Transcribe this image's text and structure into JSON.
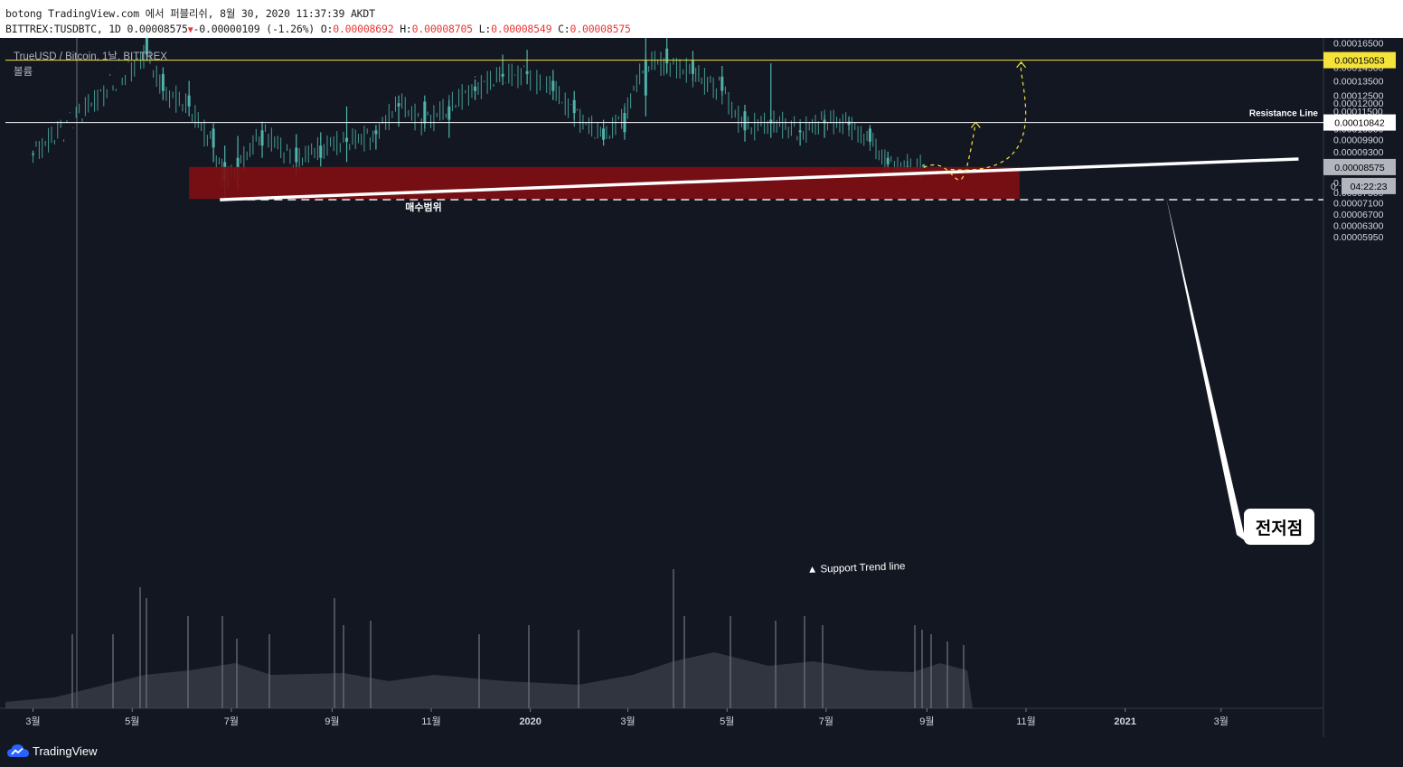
{
  "header": {
    "line1": "botong TradingView.com 에서 퍼블리쉬, 8월 30, 2020 11:37:39 AKDT",
    "symbol": "BITTREX:TUSDBTC, 1D 0.00008575",
    "change": "-0.00000109 (-1.26%)",
    "o_label": "O:",
    "o_value": "0.00008692",
    "h_label": "H:",
    "h_value": "0.00008705",
    "l_label": "L:",
    "l_value": "0.00008549",
    "c_label": "C:",
    "c_value": "0.00008575"
  },
  "legend": {
    "title": "TrueUSD / Bitcoin, 1날, BITTREX",
    "volume_label": "볼륨"
  },
  "footer": {
    "brand": "TradingView"
  },
  "colors": {
    "background": "#131722",
    "candle": "#4fb3a9",
    "resistance_yellow": "#f5e33b",
    "zone": "#7f0f14"
  },
  "chart_data": {
    "type": "candlestick",
    "symbol": "BITTREX:TUSDBTC",
    "timeframe": "1D",
    "y_scale": "log",
    "ylim": [
      5.7e-06,
      0.000166
    ],
    "x_ticks": [
      "3월",
      "5월",
      "7월",
      "9월",
      "11월",
      "2020",
      "3월",
      "5월",
      "7월",
      "9월",
      "11월",
      "2021",
      "3월"
    ],
    "y_ticks": [
      "0.00016500",
      "0.00015500",
      "0.00014500",
      "0.00013500",
      "0.00012500",
      "0.00012000",
      "0.00011500",
      "0.00011000",
      "0.00010500",
      "0.00009900",
      "0.00009300",
      "0.00008700",
      "0.00007900",
      "0.00007500",
      "0.00007100",
      "0.00006700",
      "0.00006300",
      "0.00005950"
    ],
    "price_badges": [
      {
        "value": "0.00015053",
        "color": "#f5e33b",
        "text_color": "#000000"
      },
      {
        "value": "0.00010842",
        "color": "#ffffff",
        "text_color": "#000000"
      },
      {
        "value": "0.00008575",
        "color": "#b2b5be",
        "text_color": "#000000"
      },
      {
        "value": "04:22:23",
        "color": "#b2b5be",
        "text_color": "#000000"
      }
    ],
    "countdown_row_prefix": "0.",
    "horizontal_lines": [
      {
        "value": 0.00015053,
        "color": "#f5e33b"
      },
      {
        "value": 0.00010842,
        "color": "#ffffff",
        "label": "Resistance Line"
      }
    ],
    "support_trendline": {
      "label": "▲ Support Trend line",
      "from": [
        "2019-06-24",
        7.22e-05
      ],
      "to": [
        "2021-04-01",
        8.8e-05
      ]
    },
    "buy_zone": {
      "label": "매수범위",
      "from": "2019-06-05",
      "to": "2020-10-28",
      "top": 8.58e-05,
      "bottom": 7.25e-05
    },
    "prior_low": {
      "label": "전저점",
      "value": 7.22e-05
    },
    "projections": [
      {
        "from": [
          "2020-08-30",
          8.55e-05
        ],
        "to": [
          "2020-10-01",
          0.0001085
        ]
      },
      {
        "from": [
          "2020-08-30",
          8.55e-05
        ],
        "to": [
          "2020-10-29",
          0.000149
        ]
      }
    ],
    "candles": [
      [
        "2019-03-01",
        9.2e-05,
        9.35e-05,
        9.05e-05,
        9.18e-05
      ],
      [
        "2019-05-10",
        0.00017,
        0.000172,
        0.00015,
        0.000155
      ],
      [
        "2019-05-20",
        0.00014,
        0.000145,
        0.000122,
        0.000128
      ],
      [
        "2019-06-05",
        0.000125,
        0.000135,
        0.000112,
        0.000118
      ],
      [
        "2019-06-20",
        0.000105,
        0.000108,
        8.8e-05,
        9.5e-05
      ],
      [
        "2019-06-27",
        8.8e-05,
        9.6e-05,
        7.22e-05,
        8e-05
      ],
      [
        "2019-07-05",
        9e-05,
        0.000101,
        7.6e-05,
        8.5e-05
      ],
      [
        "2019-07-20",
        9.6e-05,
        0.000108,
        9e-05,
        0.000104
      ],
      [
        "2019-08-10",
        9.5e-05,
        0.000102,
        8.2e-05,
        8.8e-05
      ],
      [
        "2019-08-25",
        9e-05,
        0.000103,
        8.6e-05,
        9.6e-05
      ],
      [
        "2019-09-10",
        0.0001,
        0.000118,
        8.8e-05,
        9.8e-05
      ],
      [
        "2019-09-28",
        0.000104,
        0.000107,
        9.4e-05,
        0.000102
      ],
      [
        "2019-10-12",
        0.000118,
        0.000125,
        0.000106,
        0.00012
      ],
      [
        "2019-10-28",
        0.000121,
        0.000125,
        0.000105,
        0.000108
      ],
      [
        "2019-11-12",
        0.00011,
        0.000122,
        0.0001,
        0.000118
      ],
      [
        "2019-11-28",
        0.000128,
        0.000136,
        0.000122,
        0.000131
      ],
      [
        "2019-12-15",
        0.00014,
        0.000155,
        0.000132,
        0.000138
      ],
      [
        "2019-12-30",
        0.000142,
        0.000159,
        0.000133,
        0.00014
      ],
      [
        "2020-01-15",
        0.000135,
        0.000143,
        0.000122,
        0.000128
      ],
      [
        "2020-01-28",
        0.000122,
        0.000128,
        0.00011,
        0.000114
      ],
      [
        "2020-02-15",
        0.000105,
        0.00011,
        9.6e-05,
        9.9e-05
      ],
      [
        "2020-02-28",
        0.000103,
        0.000118,
        9.9e-05,
        0.000114
      ],
      [
        "2020-03-12",
        0.000125,
        0.000172,
        0.000112,
        0.00015
      ],
      [
        "2020-03-25",
        0.00016,
        0.000172,
        0.000141,
        0.000148
      ],
      [
        "2020-04-10",
        0.00015,
        0.000158,
        0.000135,
        0.00014
      ],
      [
        "2020-04-28",
        0.000138,
        0.000146,
        0.000125,
        0.000128
      ],
      [
        "2020-05-12",
        0.000115,
        0.000119,
        9.8e-05,
        0.000104
      ],
      [
        "2020-05-28",
        0.000108,
        0.000148,
        0.0001,
        0.00011
      ],
      [
        "2020-06-15",
        0.000104,
        0.000108,
        9.6e-05,
        0.000103
      ],
      [
        "2020-06-30",
        0.000108,
        0.000113,
        0.0001,
        0.00011
      ],
      [
        "2020-07-15",
        0.000109,
        0.000112,
        0.000104,
        0.000107
      ],
      [
        "2020-07-28",
        0.000105,
        0.000107,
        9.6e-05,
        9.8e-05
      ],
      [
        "2020-08-08",
        9e-05,
        9.3e-05,
        8.45e-05,
        8.7e-05
      ],
      [
        "2020-08-20",
        8.6e-05,
        8.85e-05,
        8.3e-05,
        8.55e-05
      ],
      [
        "2020-08-30",
        8.69e-05,
        8.71e-05,
        8.55e-05,
        8.58e-05
      ]
    ]
  }
}
